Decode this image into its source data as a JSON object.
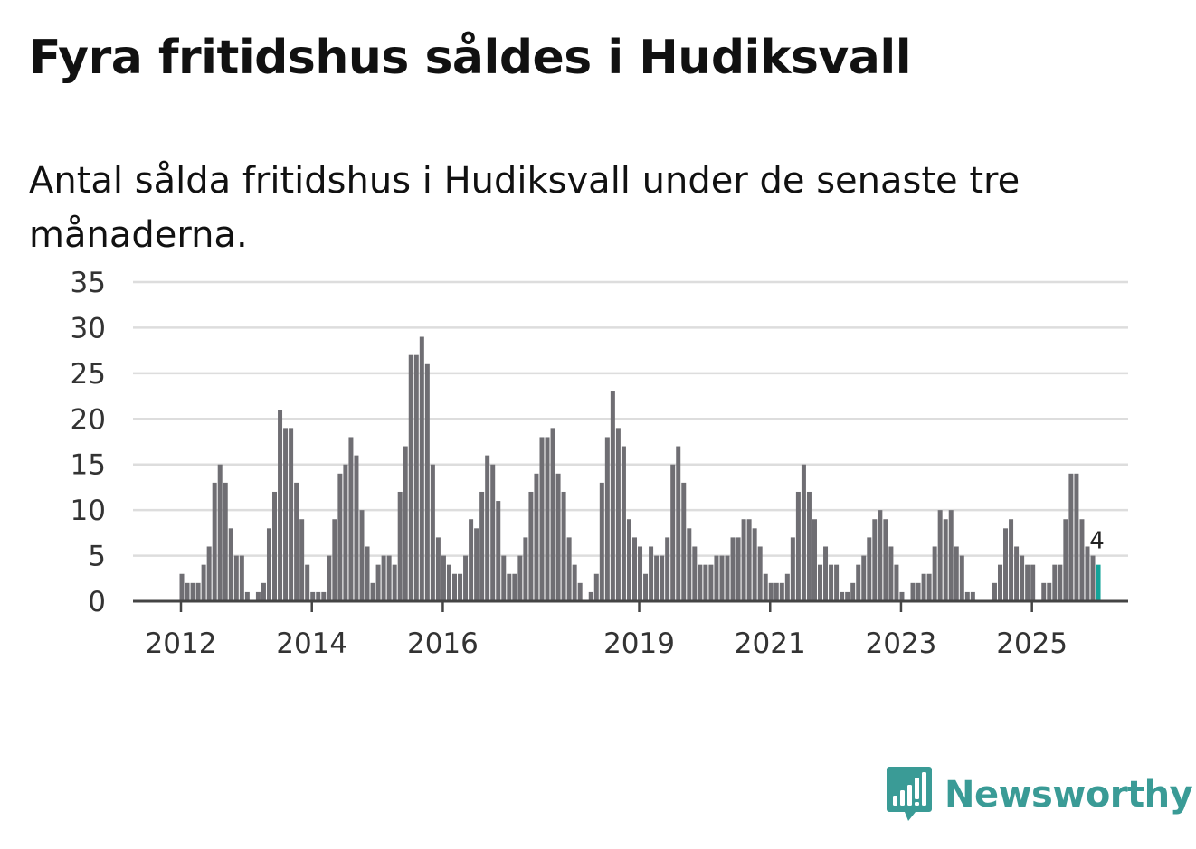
{
  "title": "Fyra fritidshus såldes i Hudiksvall",
  "subtitle": "Antal sålda fritidshus i Hudiksvall under de senaste tre månaderna.",
  "brand": {
    "name": "Newsworthy",
    "color": "#3a9b96"
  },
  "colors": {
    "bar": "#6f6e73",
    "highlight": "#14a49a",
    "grid": "#dddddd",
    "axis": "#444444"
  },
  "chart_data": {
    "type": "bar",
    "title": "Antal sålda fritidshus i Hudiksvall under de senaste tre månaderna.",
    "xlabel": "",
    "ylabel": "",
    "ylim": [
      0,
      35
    ],
    "yticks": [
      "0",
      "5",
      "10",
      "15",
      "20",
      "25",
      "30",
      "35"
    ],
    "start_index": 9,
    "xticks": [
      {
        "label": "2012",
        "index": 9
      },
      {
        "label": "2014",
        "index": 33
      },
      {
        "label": "2016",
        "index": 57
      },
      {
        "label": "2019",
        "index": 93
      },
      {
        "label": "2021",
        "index": 117
      },
      {
        "label": "2023",
        "index": 141
      },
      {
        "label": "2025",
        "index": 165
      }
    ],
    "values": [
      3,
      2,
      2,
      2,
      4,
      6,
      13,
      15,
      13,
      8,
      5,
      5,
      1,
      0,
      1,
      2,
      8,
      12,
      21,
      19,
      19,
      13,
      9,
      4,
      1,
      1,
      1,
      5,
      9,
      14,
      15,
      18,
      16,
      10,
      6,
      2,
      4,
      5,
      5,
      4,
      12,
      17,
      27,
      27,
      29,
      26,
      15,
      7,
      5,
      4,
      3,
      3,
      5,
      9,
      8,
      12,
      16,
      15,
      11,
      5,
      3,
      3,
      5,
      7,
      12,
      14,
      18,
      18,
      19,
      14,
      12,
      7,
      4,
      2,
      0,
      1,
      3,
      13,
      18,
      23,
      19,
      17,
      9,
      7,
      6,
      3,
      6,
      5,
      5,
      7,
      15,
      17,
      13,
      8,
      6,
      4,
      4,
      4,
      5,
      5,
      5,
      7,
      7,
      9,
      9,
      8,
      6,
      3,
      2,
      2,
      2,
      3,
      7,
      12,
      15,
      12,
      9,
      4,
      6,
      4,
      4,
      1,
      1,
      2,
      4,
      5,
      7,
      9,
      10,
      9,
      6,
      4,
      1,
      0,
      2,
      2,
      3,
      3,
      6,
      10,
      9,
      10,
      6,
      5,
      1,
      1,
      0,
      0,
      0,
      2,
      4,
      8,
      9,
      6,
      5,
      4,
      4,
      0,
      2,
      2,
      4,
      4,
      9,
      14,
      14,
      9,
      6,
      5,
      4
    ],
    "highlight_last": true,
    "last_value_label": "4"
  }
}
